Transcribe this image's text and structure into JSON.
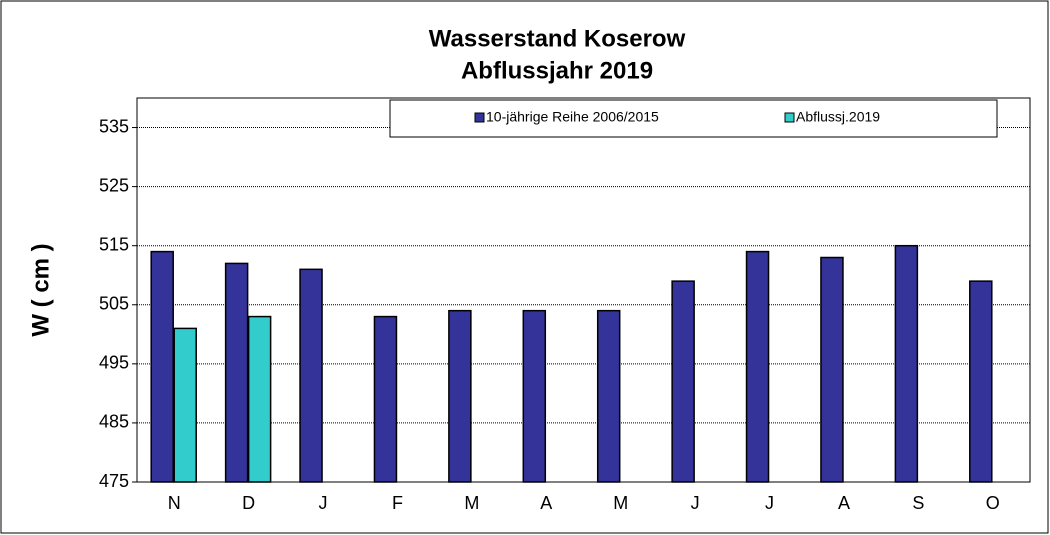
{
  "chart_data": {
    "type": "bar",
    "title": "Wasserstand Koserow",
    "subtitle": "Abflussjahr 2019",
    "y_label": "W ( cm )",
    "categories": [
      "N",
      "D",
      "J",
      "F",
      "M",
      "A",
      "M",
      "J",
      "J",
      "A",
      "S",
      "O"
    ],
    "series": [
      {
        "name": "10-jährige Reihe  2006/2015",
        "color": "#333399",
        "values": [
          514,
          512,
          511,
          503,
          504,
          504,
          504,
          509,
          514,
          513,
          515,
          509
        ]
      },
      {
        "name": "Abflussj.2019",
        "color": "#33cccc",
        "values": [
          501,
          503,
          null,
          null,
          null,
          null,
          null,
          null,
          null,
          null,
          null,
          null
        ]
      }
    ],
    "ylim": [
      475,
      540
    ],
    "yticks": [
      475,
      485,
      495,
      505,
      515,
      525,
      535
    ],
    "grid": true,
    "legend_position": "top"
  }
}
